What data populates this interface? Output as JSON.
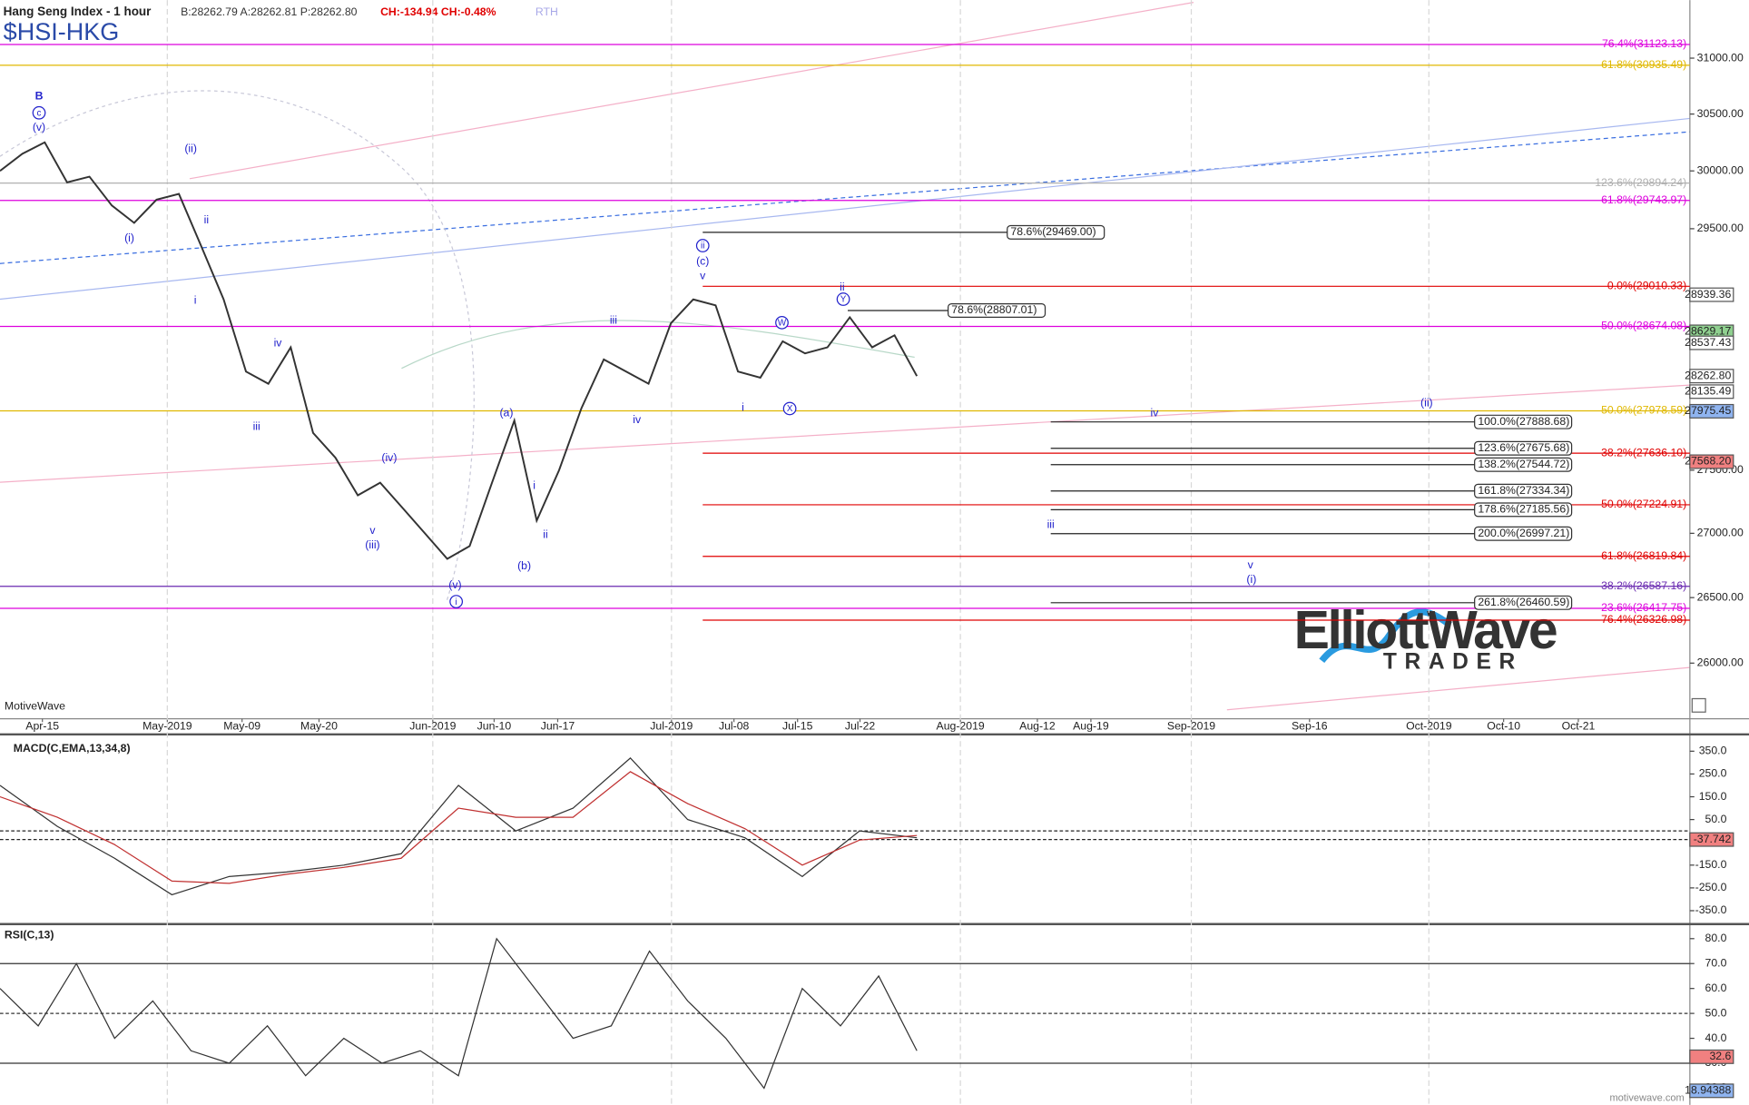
{
  "header": {
    "title": "Hang Seng Index - 1 hour",
    "quote": "B:28262.79 A:28262.81 P:28262.80",
    "change": "CH:-134.94 CH:-0.48%",
    "session": "RTH",
    "symbol": "$HSI-HKG",
    "source": "MotiveWave",
    "footer": "motivewave.com"
  },
  "logo": {
    "brand": "ElliottWave",
    "sub": "TRADER"
  },
  "price_panel": {
    "log": true,
    "ylim": [
      25616,
      31527
    ],
    "yticks": [
      {
        "value": 31000,
        "label": "31000.00"
      },
      {
        "value": 30500,
        "label": "30500.00"
      },
      {
        "value": 30000,
        "label": "30000.00"
      },
      {
        "value": 29500,
        "label": "29500.00"
      },
      {
        "value": 27500,
        "label": "27500.00"
      },
      {
        "value": 27000,
        "label": "27000.00"
      },
      {
        "value": 26500,
        "label": "26500.00"
      },
      {
        "value": 26000,
        "label": "26000.00"
      }
    ],
    "dates": [
      "Apr-15",
      "May-2019",
      "May-09",
      "May-20",
      "Jun-2019",
      "Jun-10",
      "Jun-17",
      "Jul-2019",
      "Jul-08",
      "Jul-15",
      "Jul-22",
      "Aug-2019",
      "Aug-12",
      "Aug-19",
      "Sep-2019",
      "Sep-16",
      "Oct-2019",
      "Oct-10",
      "Oct-21"
    ],
    "closes": [
      30000,
      30150,
      30250,
      29900,
      29950,
      29700,
      29550,
      29750,
      29800,
      29350,
      28900,
      28300,
      28200,
      28500,
      27800,
      27600,
      27300,
      27400,
      27200,
      27000,
      26800,
      26900,
      27400,
      27900,
      27100,
      27500,
      28000,
      28400,
      28300,
      28200,
      28700,
      28900,
      28850,
      28300,
      28250,
      28550,
      28450,
      28500,
      28750,
      28500,
      28600,
      28262.8
    ],
    "line_color": "#333333",
    "fib_levels": [
      {
        "label": "76.4%(31123.13)",
        "value": 31123.13,
        "color": "#dd00dd"
      },
      {
        "label": "61.8%(30935.49)",
        "value": 30935.49,
        "color": "#e0b800"
      },
      {
        "label": "123.6%(29894.24)",
        "value": 29894.24,
        "color": "#b0b0b0"
      },
      {
        "label": "61.8%(29743.97)",
        "value": 29743.97,
        "color": "#dd00dd"
      },
      {
        "label": "0.0%(29010.33)",
        "value": 29010.33,
        "color": "#e00000"
      },
      {
        "label": "50.0%(28674.08)",
        "value": 28674.08,
        "color": "#dd00dd"
      },
      {
        "label": "50.0%(27978.59)",
        "value": 27978.59,
        "color": "#e0b800"
      },
      {
        "label": "38.2%(27636.10)",
        "value": 27636.1,
        "color": "#e00000"
      },
      {
        "label": "50.0%(27224.91)",
        "value": 27224.91,
        "color": "#e00000"
      },
      {
        "label": "61.8%(26819.84)",
        "value": 26819.84,
        "color": "#e00000"
      },
      {
        "label": "38.2%(26587.16)",
        "value": 26587.16,
        "color": "#6a2ab0"
      },
      {
        "label": "23.6%(26417.75)",
        "value": 26417.75,
        "color": "#dd00dd"
      },
      {
        "label": "76.4%(26326.98)",
        "value": 26326.98,
        "color": "#e00000"
      }
    ],
    "fib_boxes": [
      {
        "label": "78.6%(29469.00)",
        "value": 29469.0
      },
      {
        "label": "78.6%(28807.01)",
        "value": 28807.01
      },
      {
        "label": "100.0%(27888.68)",
        "value": 27888.68
      },
      {
        "label": "123.6%(27675.68)",
        "value": 27675.68
      },
      {
        "label": "138.2%(27544.72)",
        "value": 27544.72
      },
      {
        "label": "161.8%(27334.34)",
        "value": 27334.34
      },
      {
        "label": "178.6%(27185.56)",
        "value": 27185.56
      },
      {
        "label": "200.0%(26997.21)",
        "value": 26997.21
      },
      {
        "label": "261.8%(26460.59)",
        "value": 26460.59
      }
    ],
    "price_tags": [
      28939.36,
      {
        "value": 28629.17,
        "color": "#8fd08f"
      },
      28537.43,
      {
        "value": 28262.8,
        "label": "28262.80"
      },
      28135.49,
      {
        "value": 27975.45,
        "color": "#8fb4f0"
      },
      {
        "value": 27568.2,
        "label": "27568.20",
        "color": "#f08080"
      }
    ],
    "wave_labels": [
      {
        "text": "B"
      },
      {
        "text": "c",
        "circled": true
      },
      {
        "text": "(v)"
      },
      {
        "text": "(i)"
      },
      {
        "text": "(ii)"
      },
      {
        "text": "ii"
      },
      {
        "text": "i"
      },
      {
        "text": "iv"
      },
      {
        "text": "iii"
      },
      {
        "text": "v"
      },
      {
        "text": "(iii)"
      },
      {
        "text": "(iv)"
      },
      {
        "text": "(v)"
      },
      {
        "text": "i",
        "circled": true
      },
      {
        "text": "(a)"
      },
      {
        "text": "(b)"
      },
      {
        "text": "i"
      },
      {
        "text": "ii"
      },
      {
        "text": "iii"
      },
      {
        "text": "iv"
      },
      {
        "text": "ii",
        "circled": true
      },
      {
        "text": "(c)"
      },
      {
        "text": "v"
      },
      {
        "text": "i"
      },
      {
        "text": "W",
        "circled": true
      },
      {
        "text": "X",
        "circled": true
      },
      {
        "text": "ii"
      },
      {
        "text": "Y",
        "circled": true
      },
      {
        "text": "iv"
      },
      {
        "text": "(ii)"
      },
      {
        "text": "iii"
      },
      {
        "text": "v"
      },
      {
        "text": "(i)"
      }
    ]
  },
  "macd_panel": {
    "title": "MACD(C,EMA,13,34,8)",
    "ylim": [
      -399,
      414
    ],
    "yticks": [
      {
        "value": 350,
        "label": "350.0"
      },
      {
        "value": 250,
        "label": "250.0"
      },
      {
        "value": 150,
        "label": "150.0"
      },
      {
        "value": 50,
        "label": "50.0"
      },
      {
        "value": -50,
        "label": "-50.0"
      },
      {
        "value": -150,
        "label": "-150.0"
      },
      {
        "value": -250,
        "label": "-250.0"
      },
      {
        "value": -350,
        "label": "-350.0"
      }
    ],
    "macd": [
      200,
      20,
      -120,
      -280,
      -200,
      -180,
      -150,
      -100,
      200,
      0,
      100,
      320,
      50,
      -30,
      -200,
      0,
      -30
    ],
    "signal": [
      150,
      60,
      -60,
      -220,
      -230,
      -190,
      -160,
      -120,
      100,
      60,
      60,
      260,
      120,
      10,
      -150,
      -40,
      -20
    ],
    "tag": -37.742
  },
  "rsi_panel": {
    "title": "RSI(C,13)",
    "ylim": [
      13.3,
      85.4
    ],
    "yticks": [
      {
        "value": 80,
        "label": "80.0"
      },
      {
        "value": 70,
        "label": "70.0"
      },
      {
        "value": 60,
        "label": "60.0"
      },
      {
        "value": 50,
        "label": "50.0"
      },
      {
        "value": 40,
        "label": "40.0"
      },
      {
        "value": 30,
        "label": "30.0"
      },
      {
        "value": 20,
        "label": "20.0"
      }
    ],
    "levels": [
      70,
      50,
      30
    ],
    "rsi": [
      60,
      45,
      70,
      40,
      55,
      35,
      30,
      45,
      25,
      40,
      30,
      35,
      25,
      80,
      60,
      40,
      45,
      75,
      55,
      40,
      20,
      60,
      45,
      65,
      35
    ],
    "tags": [
      {
        "value": 32.6,
        "color": "#f08080"
      },
      {
        "value": 18.94388,
        "color": "#8fb4f0"
      }
    ]
  }
}
